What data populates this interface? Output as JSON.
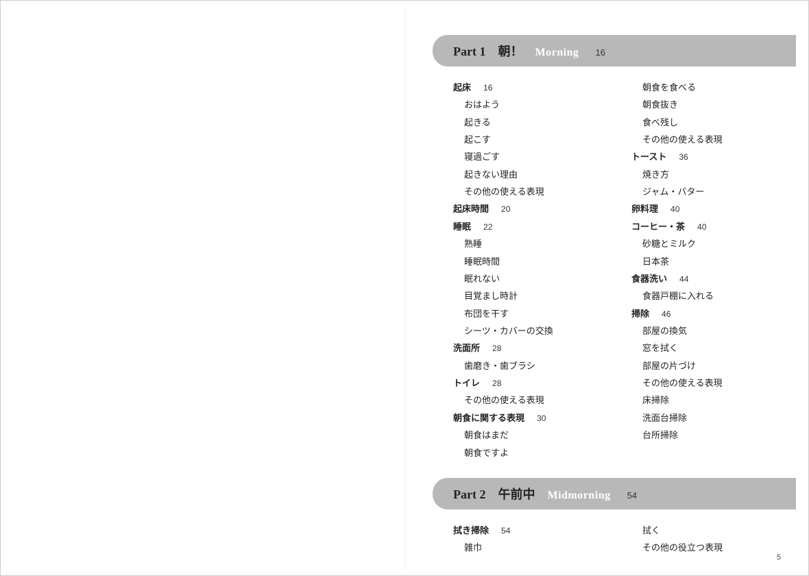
{
  "pageNumber": "5",
  "parts": [
    {
      "label": "Part 1",
      "titleJp": "朝！",
      "titleEn": "Morning",
      "page": "16",
      "columns": [
        [
          {
            "type": "head",
            "text": "起床",
            "page": "16"
          },
          {
            "type": "sub",
            "text": "おはよう"
          },
          {
            "type": "sub",
            "text": "起きる"
          },
          {
            "type": "sub",
            "text": "起こす"
          },
          {
            "type": "sub",
            "text": "寝過ごす"
          },
          {
            "type": "sub",
            "text": "起きない理由"
          },
          {
            "type": "sub",
            "text": "その他の使える表現"
          },
          {
            "type": "head",
            "text": "起床時間",
            "page": "20"
          },
          {
            "type": "head",
            "text": "睡眠",
            "page": "22"
          },
          {
            "type": "sub",
            "text": "熟睡"
          },
          {
            "type": "sub",
            "text": "睡眠時間"
          },
          {
            "type": "sub",
            "text": "眠れない"
          },
          {
            "type": "sub",
            "text": "目覚まし時計"
          },
          {
            "type": "sub",
            "text": "布団を干す"
          },
          {
            "type": "sub",
            "text": "シーツ・カバーの交換"
          },
          {
            "type": "head",
            "text": "洗面所",
            "page": "28"
          },
          {
            "type": "sub",
            "text": "歯磨き・歯ブラシ"
          },
          {
            "type": "head",
            "text": "トイレ",
            "page": "28"
          },
          {
            "type": "sub",
            "text": "その他の使える表現"
          },
          {
            "type": "head",
            "text": "朝食に関する表現",
            "page": "30"
          },
          {
            "type": "sub",
            "text": "朝食はまだ"
          },
          {
            "type": "sub",
            "text": "朝食ですよ"
          }
        ],
        [
          {
            "type": "sub",
            "text": "朝食を食べる"
          },
          {
            "type": "sub",
            "text": "朝食抜き"
          },
          {
            "type": "sub",
            "text": "食べ残し"
          },
          {
            "type": "sub",
            "text": "その他の使える表現"
          },
          {
            "type": "head",
            "text": "トースト",
            "page": "36"
          },
          {
            "type": "sub",
            "text": "焼き方"
          },
          {
            "type": "sub",
            "text": "ジャム・バター"
          },
          {
            "type": "head",
            "text": "卵料理",
            "page": "40"
          },
          {
            "type": "head",
            "text": "コーヒー・茶",
            "page": "40"
          },
          {
            "type": "sub",
            "text": "砂糖とミルク"
          },
          {
            "type": "sub",
            "text": "日本茶"
          },
          {
            "type": "head",
            "text": "食器洗い",
            "page": "44"
          },
          {
            "type": "sub",
            "text": "食器戸棚に入れる"
          },
          {
            "type": "head",
            "text": "掃除",
            "page": "46"
          },
          {
            "type": "sub",
            "text": "部屋の換気"
          },
          {
            "type": "sub",
            "text": "窓を拭く"
          },
          {
            "type": "sub",
            "text": "部屋の片づけ"
          },
          {
            "type": "sub",
            "text": "その他の使える表現"
          },
          {
            "type": "sub",
            "text": "床掃除"
          },
          {
            "type": "sub",
            "text": "洗面台掃除"
          },
          {
            "type": "sub",
            "text": "台所掃除"
          }
        ]
      ]
    },
    {
      "label": "Part 2",
      "titleJp": "午前中",
      "titleEn": "Midmorning",
      "page": "54",
      "columns": [
        [
          {
            "type": "head",
            "text": "拭き掃除",
            "page": "54"
          },
          {
            "type": "sub",
            "text": "雑巾"
          }
        ],
        [
          {
            "type": "sub",
            "text": "拭く"
          },
          {
            "type": "sub",
            "text": "その他の役立つ表現"
          }
        ]
      ]
    }
  ]
}
